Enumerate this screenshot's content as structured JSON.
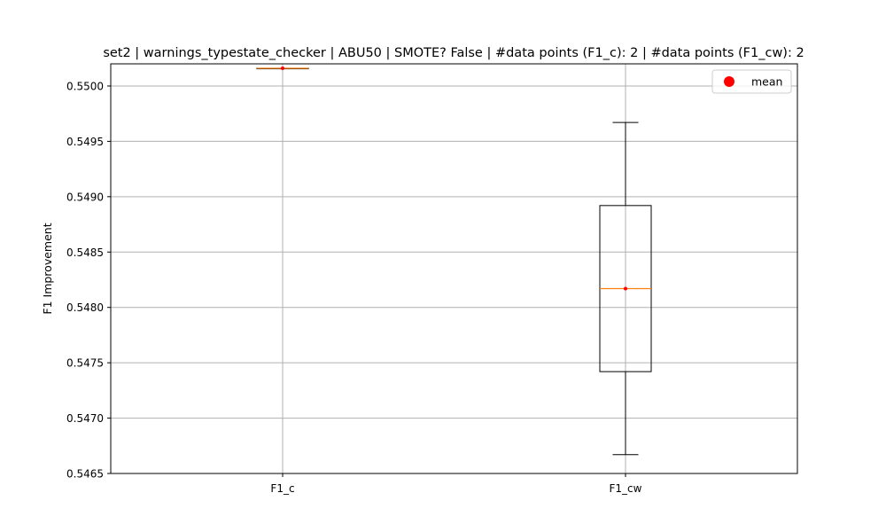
{
  "chart_data": {
    "type": "box",
    "title": "set2 | warnings_typestate_checker | ABU50 | SMOTE? False | #data points (F1_c): 2 | #data points (F1_cw): 2",
    "xlabel": "",
    "ylabel": "F1 Improvement",
    "ylim": [
      0.5465,
      0.5502
    ],
    "yticks": [
      0.5465,
      0.547,
      0.5475,
      0.548,
      0.5485,
      0.549,
      0.5495,
      0.55
    ],
    "ytick_labels": [
      "0.5465",
      "0.5470",
      "0.5475",
      "0.5480",
      "0.5485",
      "0.5490",
      "0.5495",
      "0.5500"
    ],
    "categories": [
      "F1_c",
      "F1_cw"
    ],
    "boxes": [
      {
        "category": "F1_c",
        "whisker_low": 0.55016,
        "q1": 0.55016,
        "median": 0.55016,
        "q3": 0.55016,
        "whisker_high": 0.55016,
        "mean": 0.55016
      },
      {
        "category": "F1_cw",
        "whisker_low": 0.54667,
        "q1": 0.54742,
        "median": 0.54817,
        "q3": 0.54892,
        "whisker_high": 0.54967,
        "mean": 0.54817
      }
    ],
    "legend": {
      "position": "upper-right",
      "entries": [
        {
          "label": "mean",
          "marker": "circle",
          "color": "#ff0000"
        }
      ]
    },
    "grid": true,
    "colors": {
      "box": "#000000",
      "median": "#ff7f0e",
      "mean": "#ff0000",
      "grid": "#b0b0b0"
    }
  }
}
